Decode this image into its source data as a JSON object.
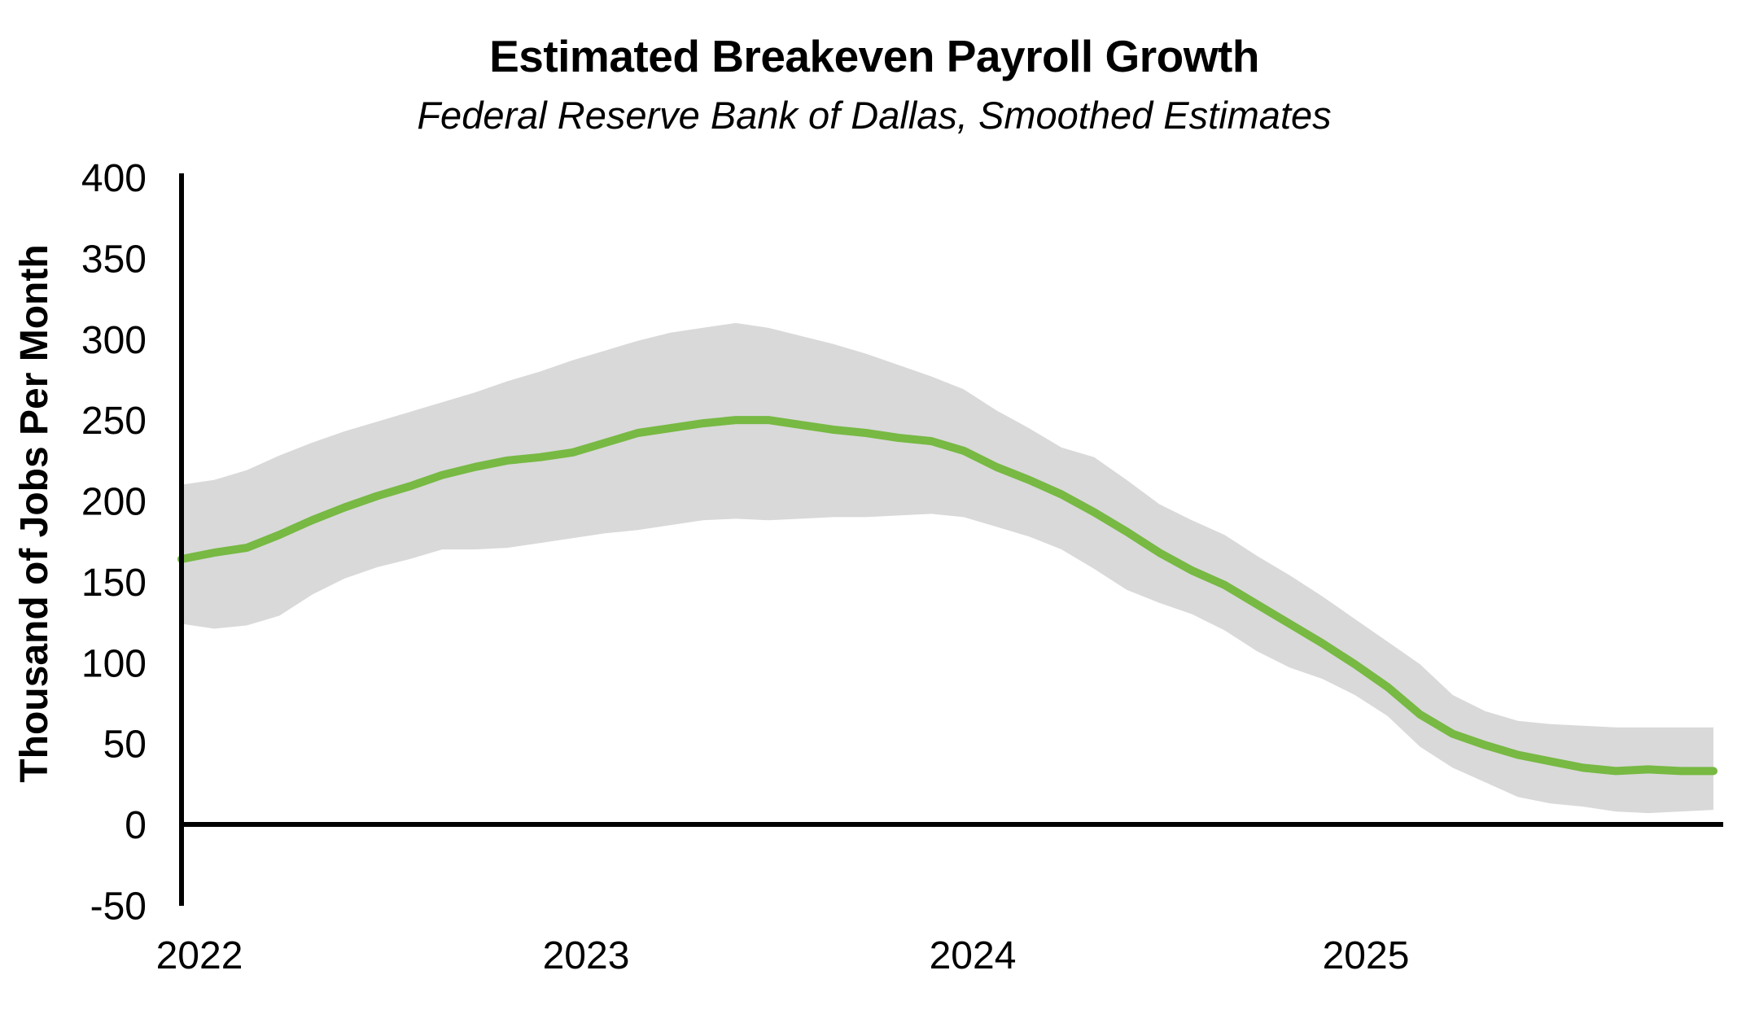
{
  "chart_data": {
    "type": "line",
    "title": "Estimated Breakeven Payroll Growth",
    "subtitle": "Federal Reserve Bank of Dallas, Smoothed Estimates",
    "ylabel": "Thousand of Jobs Per Month",
    "ylim": [
      -50,
      400
    ],
    "yticks": [
      400,
      350,
      300,
      250,
      200,
      150,
      100,
      50,
      0,
      -50
    ],
    "xtick_labels": [
      "2022",
      "2023",
      "2024",
      "2025"
    ],
    "grid": false,
    "legend": "none",
    "months": [
      "2022-01",
      "2022-02",
      "2022-03",
      "2022-04",
      "2022-05",
      "2022-06",
      "2022-07",
      "2022-08",
      "2022-09",
      "2022-10",
      "2022-11",
      "2022-12",
      "2023-01",
      "2023-02",
      "2023-03",
      "2023-04",
      "2023-05",
      "2023-06",
      "2023-07",
      "2023-08",
      "2023-09",
      "2023-10",
      "2023-11",
      "2023-12",
      "2024-01",
      "2024-02",
      "2024-03",
      "2024-04",
      "2024-05",
      "2024-06",
      "2024-07",
      "2024-08",
      "2024-09",
      "2024-10",
      "2024-11",
      "2024-12",
      "2025-01",
      "2025-02",
      "2025-03",
      "2025-04",
      "2025-05",
      "2025-06",
      "2025-07",
      "2025-08",
      "2025-09",
      "2025-10",
      "2025-11",
      "2025-12"
    ],
    "series": [
      {
        "name": "Smoothed breakeven estimate",
        "role": "line",
        "color": "#77b943",
        "values": [
          164,
          168,
          171,
          179,
          188,
          196,
          203,
          209,
          216,
          221,
          225,
          227,
          230,
          236,
          242,
          245,
          248,
          250,
          250,
          247,
          244,
          242,
          239,
          237,
          231,
          221,
          213,
          204,
          193,
          181,
          168,
          157,
          148,
          136,
          124,
          112,
          99,
          85,
          68,
          56,
          49,
          43,
          39,
          35,
          33,
          34,
          33,
          33
        ]
      },
      {
        "name": "Confidence band upper",
        "role": "band_upper",
        "color": "#d9d9d9",
        "values": [
          210,
          213,
          219,
          228,
          236,
          243,
          249,
          255,
          261,
          267,
          274,
          280,
          287,
          293,
          299,
          304,
          307,
          310,
          307,
          302,
          297,
          291,
          284,
          277,
          269,
          256,
          245,
          233,
          227,
          213,
          198,
          188,
          179,
          166,
          154,
          141,
          127,
          113,
          99,
          80,
          70,
          64,
          62,
          61,
          60,
          60,
          60,
          60
        ]
      },
      {
        "name": "Confidence band lower",
        "role": "band_lower",
        "color": "#d9d9d9",
        "values": [
          124,
          121,
          123,
          129,
          142,
          152,
          159,
          164,
          170,
          170,
          171,
          174,
          177,
          180,
          182,
          185,
          188,
          189,
          188,
          189,
          190,
          190,
          191,
          192,
          190,
          184,
          178,
          170,
          158,
          145,
          137,
          130,
          120,
          107,
          97,
          90,
          80,
          67,
          48,
          35,
          26,
          17,
          13,
          11,
          8,
          7,
          8,
          9
        ]
      }
    ],
    "colors": {
      "line": "#77b943",
      "band": "#d9d9d9",
      "axis": "#000000",
      "text": "#000000",
      "background": "#ffffff"
    }
  }
}
